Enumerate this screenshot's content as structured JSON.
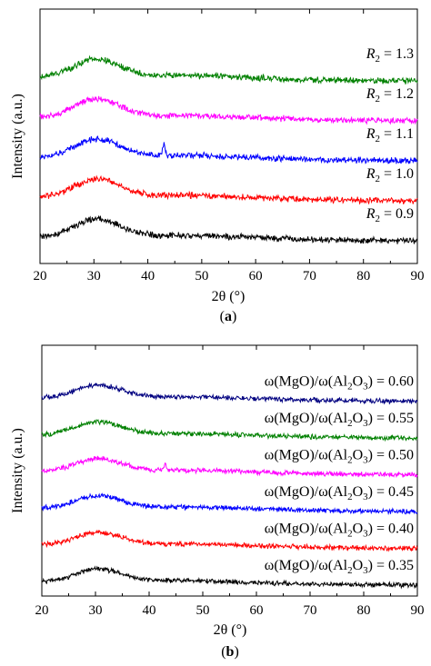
{
  "chart_data": [
    {
      "type": "line",
      "panel_label": "(a)",
      "xlabel": "2θ (°)",
      "ylabel": "Intensity (a.u.)",
      "xlim": [
        20,
        90
      ],
      "xticks": [
        20,
        30,
        40,
        50,
        60,
        70,
        80,
        90
      ],
      "series": [
        {
          "label_pre": "R",
          "label_sub": "2",
          "label_post": " = 0.9",
          "color": "#000000",
          "offset": 0.0,
          "peak2": 0.0
        },
        {
          "label_pre": "R",
          "label_sub": "2",
          "label_post": " = 1.0",
          "color": "#ff0000",
          "offset": 1.0,
          "peak2": 0.0
        },
        {
          "label_pre": "R",
          "label_sub": "2",
          "label_post": " = 1.1",
          "color": "#0000ff",
          "offset": 2.0,
          "peak2": 0.6
        },
        {
          "label_pre": "R",
          "label_sub": "2",
          "label_post": " = 1.2",
          "color": "#ff00ff",
          "offset": 3.0,
          "peak2": 0.0
        },
        {
          "label_pre": "R",
          "label_sub": "2",
          "label_post": " = 1.3",
          "color": "#008000",
          "offset": 4.0,
          "peak2": 0.0
        }
      ]
    },
    {
      "type": "line",
      "panel_label": "(b)",
      "xlabel": "2θ (°)",
      "ylabel": "Intensity (a.u.)",
      "xlim": [
        20,
        90
      ],
      "xticks": [
        20,
        30,
        40,
        50,
        60,
        70,
        80,
        90
      ],
      "series": [
        {
          "label_pre": "ω(MgO)/ω(Al",
          "label_sub": "2",
          "label_post": "O",
          "label_sub2": "3",
          "label_post2": ") = 0.35",
          "color": "#000000",
          "offset": 0.0,
          "peak2": 0.0
        },
        {
          "label_pre": "ω(MgO)/ω(Al",
          "label_sub": "2",
          "label_post": "O",
          "label_sub2": "3",
          "label_post2": ") = 0.40",
          "color": "#ff0000",
          "offset": 1.0,
          "peak2": 0.0
        },
        {
          "label_pre": "ω(MgO)/ω(Al",
          "label_sub": "2",
          "label_post": "O",
          "label_sub2": "3",
          "label_post2": ") = 0.45",
          "color": "#0000ff",
          "offset": 2.0,
          "peak2": 0.0
        },
        {
          "label_pre": "ω(MgO)/ω(Al",
          "label_sub": "2",
          "label_post": "O",
          "label_sub2": "3",
          "label_post2": ") = 0.50",
          "color": "#ff00ff",
          "offset": 3.0,
          "peak2": 0.55
        },
        {
          "label_pre": "ω(MgO)/ω(Al",
          "label_sub": "2",
          "label_post": "O",
          "label_sub2": "3",
          "label_post2": ") = 0.55",
          "color": "#008000",
          "offset": 4.0,
          "peak2": 0.0
        },
        {
          "label_pre": "ω(MgO)/ω(Al",
          "label_sub": "2",
          "label_post": "O",
          "label_sub2": "3",
          "label_post2": ") = 0.60",
          "color": "#000080",
          "offset": 5.0,
          "peak2": 0.0
        }
      ]
    }
  ]
}
